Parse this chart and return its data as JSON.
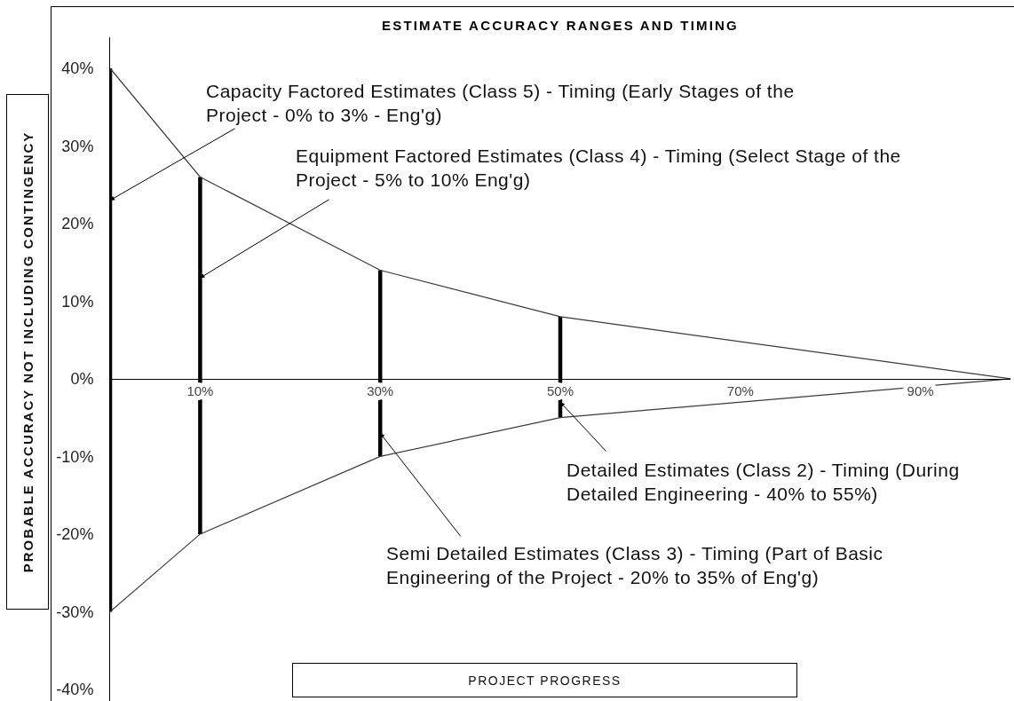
{
  "chart_data": {
    "type": "line",
    "title": "ESTIMATE ACCURACY RANGES AND TIMING",
    "xlabel": "PROJECT PROGRESS",
    "ylabel": "PROBABLE ACCURACY NOT INCLUDING CONTINGENCY",
    "xlim": [
      0,
      100
    ],
    "xticks": [
      {
        "value": 10,
        "label": "10%"
      },
      {
        "value": 30,
        "label": "30%"
      },
      {
        "value": 50,
        "label": "50%"
      },
      {
        "value": 70,
        "label": "70%"
      },
      {
        "value": 90,
        "label": "90%"
      }
    ],
    "ylim": [
      -41.5,
      44
    ],
    "yticks": [
      {
        "value": 40,
        "label": "40%"
      },
      {
        "value": 30,
        "label": "30%"
      },
      {
        "value": 20,
        "label": "20%"
      },
      {
        "value": 10,
        "label": "10%"
      },
      {
        "value": 0,
        "label": "0%"
      },
      {
        "value": -10,
        "label": "-10%"
      },
      {
        "value": -20,
        "label": "-20%"
      },
      {
        "value": -30,
        "label": "-30%"
      },
      {
        "value": -40,
        "label": "-40%"
      }
    ],
    "line_style": "solid",
    "series": [
      {
        "color": "#3a3a3a",
        "x": [
          0,
          10,
          30,
          50,
          100
        ],
        "values": [
          40,
          26,
          14,
          8,
          0
        ]
      },
      {
        "color": "#3a3a3a",
        "x": [
          0,
          10,
          30,
          50,
          100
        ],
        "values": [
          -30,
          -20,
          -10,
          -5,
          0
        ]
      },
      {
        "type": "bar",
        "color": "#000000",
        "x": [
          0,
          10,
          30,
          50
        ],
        "base": [
          -30,
          -20,
          -10,
          -5
        ],
        "values": [
          70,
          46,
          24,
          13
        ]
      }
    ],
    "annotations": [
      {
        "text": "Capacity Factored Estimates (Class 5) - Timing (Early Stages of the\nProject - 0% to 3% - Eng'g)",
        "x": 0,
        "y": 23
      },
      {
        "text": "Equipment Factored Estimates (Class 4) - Timing (Select Stage of the\nProject - 5% to 10% Eng'g)",
        "x": 10,
        "y": 13
      },
      {
        "text": "Detailed Estimates (Class 2) - Timing (During\nDetailed Engineering - 40% to 55%)",
        "x": 50,
        "y": -3
      },
      {
        "text": "Semi Detailed Estimates (Class 3) - Timing (Part of Basic\nEngineering of the Project - 20% to 35% of Eng'g)",
        "x": 30,
        "y": -7
      }
    ]
  }
}
